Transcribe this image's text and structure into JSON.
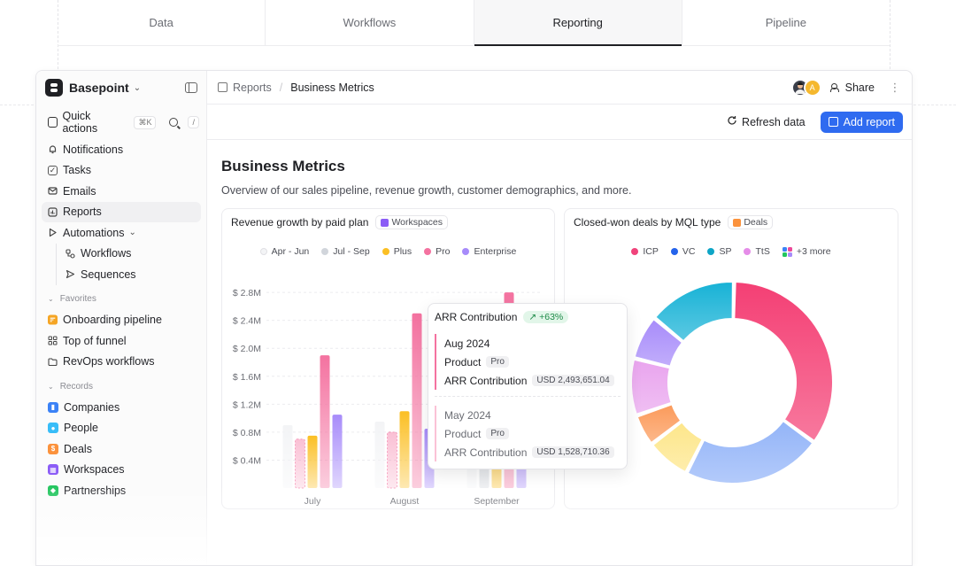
{
  "top_tabs": [
    {
      "label": "Data"
    },
    {
      "label": "Workflows"
    },
    {
      "label": "Reporting",
      "active": true
    },
    {
      "label": "Pipeline"
    }
  ],
  "workspace": {
    "name": "Basepoint"
  },
  "quick_actions": {
    "label": "Quick actions",
    "shortcut": "⌘K",
    "search_shortcut": "/"
  },
  "nav": [
    {
      "label": "Notifications",
      "icon": "bell-icon"
    },
    {
      "label": "Tasks",
      "icon": "checkbox-icon"
    },
    {
      "label": "Emails",
      "icon": "mail-icon"
    },
    {
      "label": "Reports",
      "icon": "chart-icon",
      "active": true
    },
    {
      "label": "Automations",
      "icon": "play-icon"
    },
    {
      "label": "Workflows",
      "icon": "workflow-icon"
    },
    {
      "label": "Sequences",
      "icon": "send-icon"
    }
  ],
  "favorites": {
    "label": "Favorites",
    "items": [
      {
        "label": "Onboarding pipeline",
        "icon": "pipeline-icon"
      },
      {
        "label": "Top of funnel",
        "icon": "grid-icon"
      },
      {
        "label": "RevOps workflows",
        "icon": "folder-icon"
      }
    ]
  },
  "records": {
    "label": "Records",
    "items": [
      {
        "label": "Companies",
        "color": "#3b82f6"
      },
      {
        "label": "People",
        "color": "#38bdf8"
      },
      {
        "label": "Deals",
        "color": "#fb923c"
      },
      {
        "label": "Workspaces",
        "color": "#8b5cf6"
      },
      {
        "label": "Partnerships",
        "color": "#22c55e"
      }
    ]
  },
  "breadcrumb": {
    "parent": "Reports",
    "current": "Business Metrics"
  },
  "header": {
    "share_label": "Share",
    "avatar_initial": "A"
  },
  "actions": {
    "refresh": "Refresh data",
    "add": "Add report"
  },
  "page": {
    "title": "Business Metrics",
    "subtitle": "Overview of our sales pipeline, revenue growth, customer demographics, and more."
  },
  "revenue_card": {
    "title": "Revenue growth by paid plan",
    "tag": "Workspaces"
  },
  "deals_card": {
    "title": "Closed-won deals by MQL type",
    "tag": "Deals",
    "more_label": "+3 more"
  },
  "tooltip": {
    "title": "ARR Contribution",
    "badge": "+63%",
    "current": {
      "period": "Aug 2024",
      "product_label": "Product",
      "product": "Pro",
      "metric_label": "ARR Contribution",
      "value": "USD 2,493,651.04"
    },
    "previous": {
      "period": "May 2024",
      "product_label": "Product",
      "product": "Pro",
      "metric_label": "ARR Contribution",
      "value": "USD 1,528,710.36"
    }
  },
  "chart_data": [
    {
      "type": "bar",
      "title": "Revenue growth by paid plan",
      "categories": [
        "July",
        "August",
        "September"
      ],
      "y_ticks": [
        "$ 0.4M",
        "$ 0.8M",
        "$ 1.2M",
        "$ 1.6M",
        "$ 2.0M",
        "$ 2.4M",
        "$ 2.8M"
      ],
      "ylim": [
        0,
        2.8
      ],
      "series": [
        {
          "name": "Apr - Jun",
          "color": "#f3f4f6",
          "values": [
            0.9,
            0.95,
            0.95
          ]
        },
        {
          "name": "Jul - Sep",
          "color": "#d1d5db",
          "values": [
            0.7,
            0.8,
            0.85
          ]
        },
        {
          "name": "Plus",
          "color": "#fbbf24",
          "values": [
            0.75,
            1.1,
            1.0
          ]
        },
        {
          "name": "Pro",
          "color": "#f472a0",
          "values": [
            1.9,
            2.5,
            2.8
          ]
        },
        {
          "name": "Enterprise",
          "color": "#a78bfa",
          "values": [
            1.05,
            0.85,
            1.0
          ]
        }
      ],
      "legend_position": "top"
    },
    {
      "type": "pie",
      "title": "Closed-won deals by MQL type",
      "legend_position": "top",
      "slices": [
        {
          "name": "ICP",
          "color": "#f43f74",
          "value": 34
        },
        {
          "name": "",
          "color": "#93b4f8",
          "value": 22
        },
        {
          "name": "",
          "color": "#fde68a",
          "value": 7
        },
        {
          "name": "",
          "color": "#fb9a5a",
          "value": 5
        },
        {
          "name": "",
          "color": "#e9a4ee",
          "value": 9
        },
        {
          "name": "",
          "color": "#a78bfa",
          "value": 7
        },
        {
          "name": "SP",
          "color": "#17b2d6",
          "value": 14
        }
      ],
      "legend": [
        {
          "name": "ICP",
          "color": "#f0437b"
        },
        {
          "name": "VC",
          "color": "#2563eb"
        },
        {
          "name": "SP",
          "color": "#0ea5c6"
        },
        {
          "name": "TtS",
          "color": "#e58ce8"
        }
      ]
    }
  ]
}
